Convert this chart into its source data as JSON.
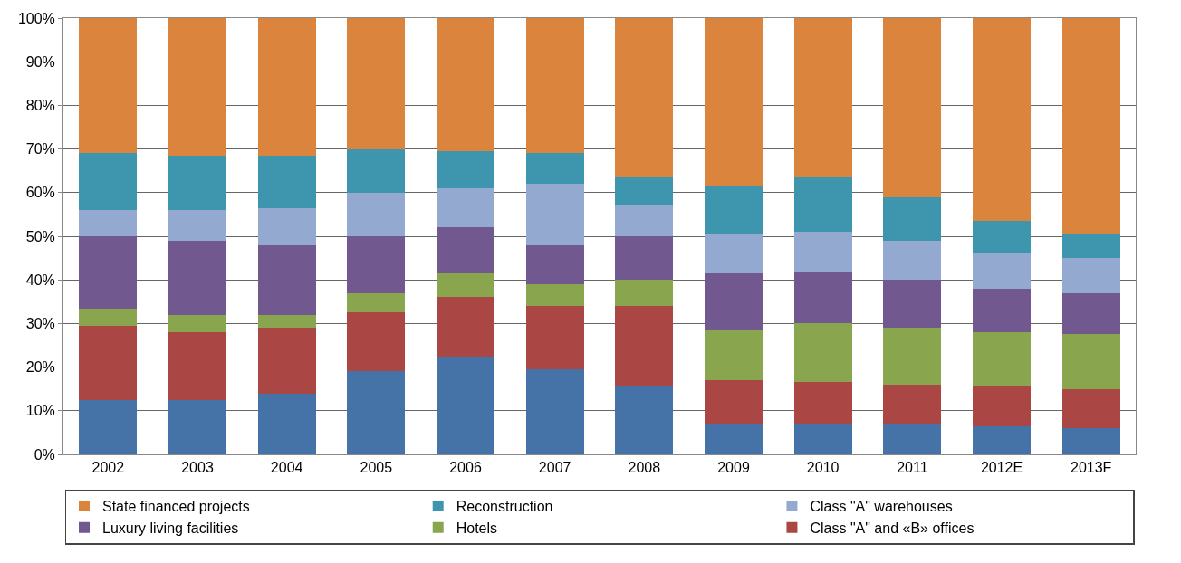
{
  "chart_data": {
    "type": "bar",
    "stacked": true,
    "categories": [
      "2002",
      "2003",
      "2004",
      "2005",
      "2006",
      "2007",
      "2008",
      "2009",
      "2010",
      "2011",
      "2012E",
      "2013F"
    ],
    "series": [
      {
        "color": "#4572a7",
        "values": [
          12.5,
          12.5,
          14,
          19,
          22.5,
          19.5,
          15.5,
          7,
          7,
          7,
          6.5,
          6
        ]
      },
      {
        "name": "Class \"A\" and «B» offices",
        "color": "#aa4643",
        "values": [
          17,
          15.5,
          15,
          13.5,
          13.5,
          14.5,
          18.5,
          10,
          9.5,
          9,
          9,
          9
        ]
      },
      {
        "name": "Hotels",
        "color": "#89a54e",
        "values": [
          4,
          4,
          3,
          4.5,
          5.5,
          5,
          6,
          11.5,
          13.5,
          13,
          12.5,
          12.5
        ]
      },
      {
        "name": "Luxury living facilities",
        "color": "#71588f",
        "values": [
          16.5,
          17,
          16,
          13,
          10.5,
          9,
          10,
          13,
          12,
          11,
          10,
          9.5
        ]
      },
      {
        "name": "Class \"A\" warehouses",
        "color": "#93a9cf",
        "values": [
          6,
          7,
          8.5,
          10,
          9,
          14,
          7,
          9,
          9,
          9,
          8,
          8
        ]
      },
      {
        "name": "Reconstruction",
        "color": "#3d96ae",
        "values": [
          13,
          12.5,
          12,
          10,
          8.5,
          7,
          6.5,
          11,
          12.5,
          10,
          7.5,
          5.5
        ]
      },
      {
        "name": "State financed projects",
        "color": "#db843d",
        "values": [
          31,
          31.5,
          31.5,
          30,
          30.5,
          31,
          36.5,
          38.5,
          36.5,
          41,
          46.5,
          49.5
        ]
      }
    ],
    "ylim": [
      0,
      100
    ],
    "yticks": [
      {
        "value": 0,
        "label": "0%"
      },
      {
        "value": 10,
        "label": "10%"
      },
      {
        "value": 20,
        "label": "20%"
      },
      {
        "value": 30,
        "label": "30%"
      },
      {
        "value": 40,
        "label": "40%"
      },
      {
        "value": 50,
        "label": "50%"
      },
      {
        "value": 60,
        "label": "60%"
      },
      {
        "value": 70,
        "label": "70%"
      },
      {
        "value": 80,
        "label": "80%"
      },
      {
        "value": 90,
        "label": "90%"
      },
      {
        "value": 100,
        "label": "100%"
      }
    ],
    "grid": "y",
    "legend": "bottom"
  }
}
